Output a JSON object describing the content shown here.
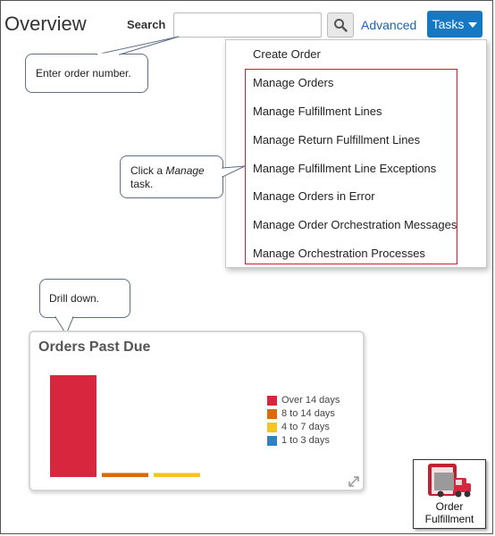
{
  "page": {
    "title": "Overview"
  },
  "search": {
    "label": "Search",
    "value": "",
    "placeholder": "",
    "advanced_label": "Advanced"
  },
  "tasks": {
    "button_label": "Tasks",
    "menu_items": [
      "Create Order",
      "Manage Orders",
      "Manage Fulfillment Lines",
      "Manage Return Fulfillment Lines",
      "Manage Fulfillment Line Exceptions",
      "Manage Orders in Error",
      "Manage Order Orchestration Messages",
      "Manage Orchestration Processes"
    ]
  },
  "callouts": {
    "order_number": "Enter order number.",
    "manage_prefix": "Click a",
    "manage_emphasis": "Manage",
    "manage_suffix": "task.",
    "drill_down": "Drill down."
  },
  "widget": {
    "title": "Orders Past Due",
    "legend": [
      {
        "label": "Over 14 days",
        "color": "#d7263d"
      },
      {
        "label": "8 to 14 days",
        "color": "#d96b0c"
      },
      {
        "label": "4 to 7 days",
        "color": "#f5c525"
      },
      {
        "label": "1 to 3 days",
        "color": "#2b83c6"
      }
    ]
  },
  "chart_data": {
    "type": "bar",
    "title": "Orders Past Due",
    "categories": [
      "Over 14 days",
      "8 to 14 days",
      "4 to 7 days",
      "1 to 3 days"
    ],
    "values": [
      100,
      4,
      4,
      0
    ],
    "colors": [
      "#d7263d",
      "#d96b0c",
      "#f5c525",
      "#2b83c6"
    ],
    "ylim": [
      0,
      100
    ],
    "grid": false,
    "legend": "right"
  },
  "tile": {
    "label_line1": "Order",
    "label_line2": "Fulfillment"
  },
  "icons": {
    "search_button": "magnifier-icon",
    "tasks_caret": "caret-down-icon",
    "widget_expand": "expand-icon",
    "tile": "truck-icon"
  }
}
